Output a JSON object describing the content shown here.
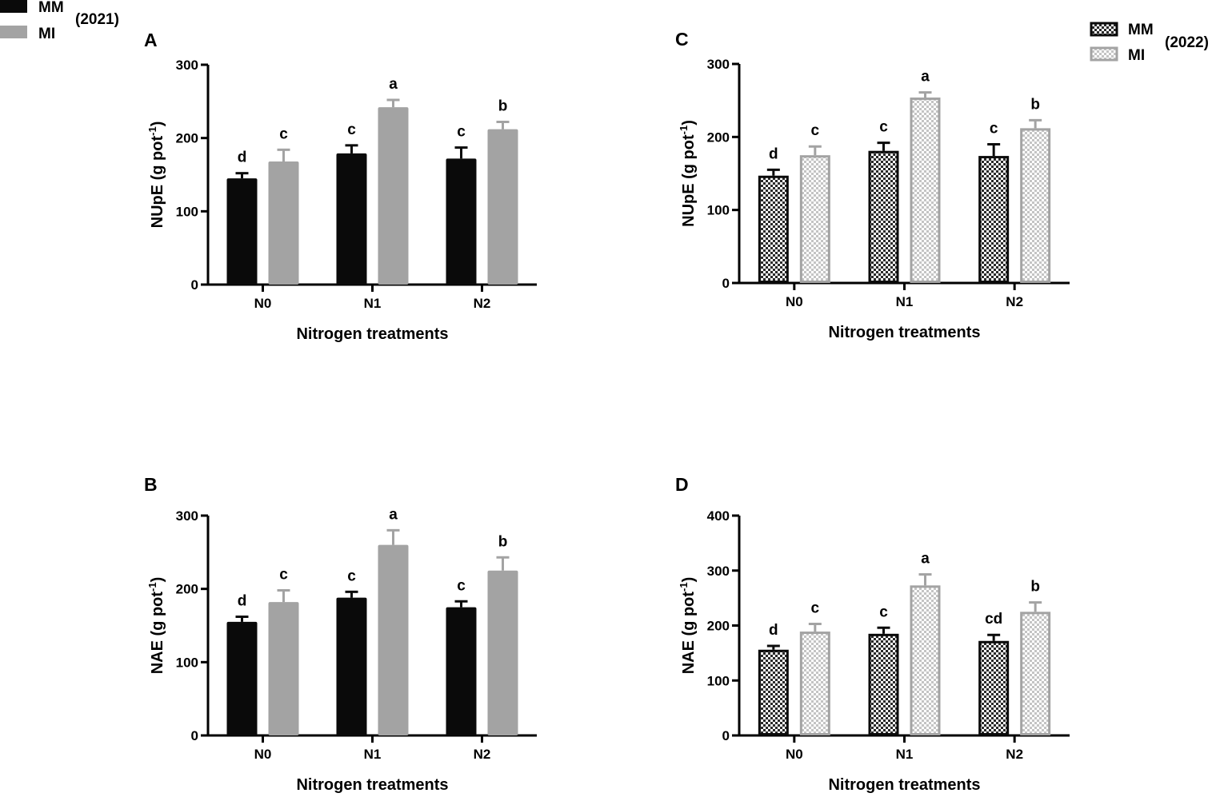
{
  "figure": {
    "legends": [
      {
        "year": "(2021)",
        "entries": [
          {
            "label": "MM",
            "color": "#0a0a0a",
            "pattern": "solid"
          },
          {
            "label": "MI",
            "color": "#a3a3a3",
            "pattern": "solid"
          }
        ]
      },
      {
        "year": "(2022)",
        "entries": [
          {
            "label": "MM",
            "color": "#0a0a0a",
            "pattern": "checker"
          },
          {
            "label": "MI",
            "color": "#a3a3a3",
            "pattern": "checker"
          }
        ]
      }
    ]
  },
  "chart_data": [
    {
      "panel": "A",
      "type": "bar",
      "pattern": "solid",
      "title": "",
      "xlabel": "Nitrogen treatments",
      "ylabel_main": "NUpE (g pot",
      "ylabel_sup": "-1",
      "ylabel_end": ")",
      "ylim": [
        0,
        300
      ],
      "yticks": [
        0,
        100,
        200,
        300
      ],
      "categories": [
        "N0",
        "N1",
        "N2"
      ],
      "series": [
        {
          "name": "MM",
          "values": [
            145,
            179,
            172
          ],
          "errors": [
            7,
            11,
            15
          ],
          "letters": [
            "d",
            "c",
            "c"
          ]
        },
        {
          "name": "MI",
          "values": [
            168,
            242,
            212
          ],
          "errors": [
            16,
            10,
            10
          ],
          "letters": [
            "c",
            "a",
            "b"
          ]
        }
      ]
    },
    {
      "panel": "B",
      "type": "bar",
      "pattern": "solid",
      "title": "",
      "xlabel": "Nitrogen treatments",
      "ylabel_main": "NAE (g pot",
      "ylabel_sup": "-1",
      "ylabel_end": ")",
      "ylim": [
        0,
        300
      ],
      "yticks": [
        0,
        100,
        200,
        300
      ],
      "categories": [
        "N0",
        "N1",
        "N2"
      ],
      "series": [
        {
          "name": "MM",
          "values": [
            155,
            188,
            175
          ],
          "errors": [
            7,
            8,
            8
          ],
          "letters": [
            "d",
            "c",
            "c"
          ]
        },
        {
          "name": "MI",
          "values": [
            182,
            260,
            225
          ],
          "errors": [
            16,
            20,
            18
          ],
          "letters": [
            "c",
            "a",
            "b"
          ]
        }
      ]
    },
    {
      "panel": "C",
      "type": "bar",
      "pattern": "checker",
      "title": "",
      "xlabel": "Nitrogen treatments",
      "ylabel_main": "NUpE (g pot",
      "ylabel_sup": "-1",
      "ylabel_end": ")",
      "ylim": [
        0,
        300
      ],
      "yticks": [
        0,
        100,
        200,
        300
      ],
      "categories": [
        "N0",
        "N1",
        "N2"
      ],
      "series": [
        {
          "name": "MM",
          "values": [
            147,
            181,
            174
          ],
          "errors": [
            8,
            11,
            16
          ],
          "letters": [
            "d",
            "c",
            "c"
          ]
        },
        {
          "name": "MI",
          "values": [
            175,
            254,
            212
          ],
          "errors": [
            12,
            7,
            11
          ],
          "letters": [
            "c",
            "a",
            "b"
          ]
        }
      ]
    },
    {
      "panel": "D",
      "type": "bar",
      "pattern": "checker",
      "title": "",
      "xlabel": "Nitrogen treatments",
      "ylabel_main": "NAE (g pot",
      "ylabel_sup": "-1",
      "ylabel_end": ")",
      "ylim": [
        0,
        400
      ],
      "yticks": [
        0,
        100,
        200,
        300,
        400
      ],
      "categories": [
        "N0",
        "N1",
        "N2"
      ],
      "series": [
        {
          "name": "MM",
          "values": [
            156,
            185,
            172
          ],
          "errors": [
            7,
            11,
            11
          ],
          "letters": [
            "d",
            "c",
            "cd"
          ]
        },
        {
          "name": "MI",
          "values": [
            189,
            273,
            225
          ],
          "errors": [
            14,
            20,
            17
          ],
          "letters": [
            "c",
            "a",
            "b"
          ]
        }
      ]
    }
  ]
}
